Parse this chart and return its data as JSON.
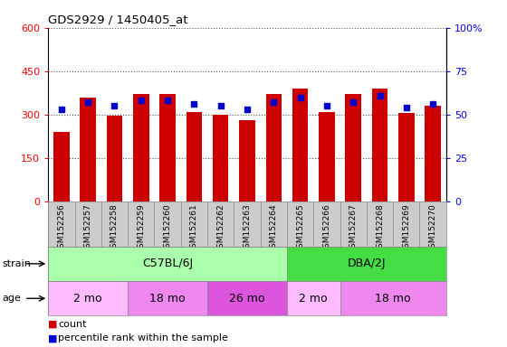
{
  "title": "GDS2929 / 1450405_at",
  "samples": [
    "GSM152256",
    "GSM152257",
    "GSM152258",
    "GSM152259",
    "GSM152260",
    "GSM152261",
    "GSM152262",
    "GSM152263",
    "GSM152264",
    "GSM152265",
    "GSM152266",
    "GSM152267",
    "GSM152268",
    "GSM152269",
    "GSM152270"
  ],
  "counts": [
    240,
    360,
    295,
    370,
    370,
    310,
    300,
    280,
    370,
    390,
    310,
    370,
    390,
    305,
    330
  ],
  "percentiles": [
    53,
    57,
    55,
    58,
    58,
    56,
    55,
    53,
    57,
    60,
    55,
    57,
    61,
    54,
    56
  ],
  "ylim_left": [
    0,
    600
  ],
  "ylim_right": [
    0,
    100
  ],
  "yticks_left": [
    0,
    150,
    300,
    450,
    600
  ],
  "ytick_labels_left": [
    "0",
    "150",
    "300",
    "450",
    "600"
  ],
  "yticks_right": [
    0,
    25,
    50,
    75,
    100
  ],
  "ytick_labels_right": [
    "0",
    "25",
    "50",
    "75",
    "100%"
  ],
  "bar_color": "#cc0000",
  "dot_color": "#0000cc",
  "grid_color": "#555555",
  "strain_groups": [
    {
      "label": "C57BL/6J",
      "start": 0,
      "end": 9,
      "color": "#aaffaa"
    },
    {
      "label": "DBA/2J",
      "start": 9,
      "end": 15,
      "color": "#44dd44"
    }
  ],
  "age_groups": [
    {
      "label": "2 mo",
      "start": 0,
      "end": 3,
      "color": "#ffbbff"
    },
    {
      "label": "18 mo",
      "start": 3,
      "end": 6,
      "color": "#ee88ee"
    },
    {
      "label": "26 mo",
      "start": 6,
      "end": 9,
      "color": "#dd55dd"
    },
    {
      "label": "2 mo",
      "start": 9,
      "end": 11,
      "color": "#ffbbff"
    },
    {
      "label": "18 mo",
      "start": 11,
      "end": 15,
      "color": "#ee88ee"
    }
  ],
  "legend_count_label": "count",
  "legend_pct_label": "percentile rank within the sample",
  "tick_area_bg": "#cccccc",
  "bg_color": "#ffffff"
}
